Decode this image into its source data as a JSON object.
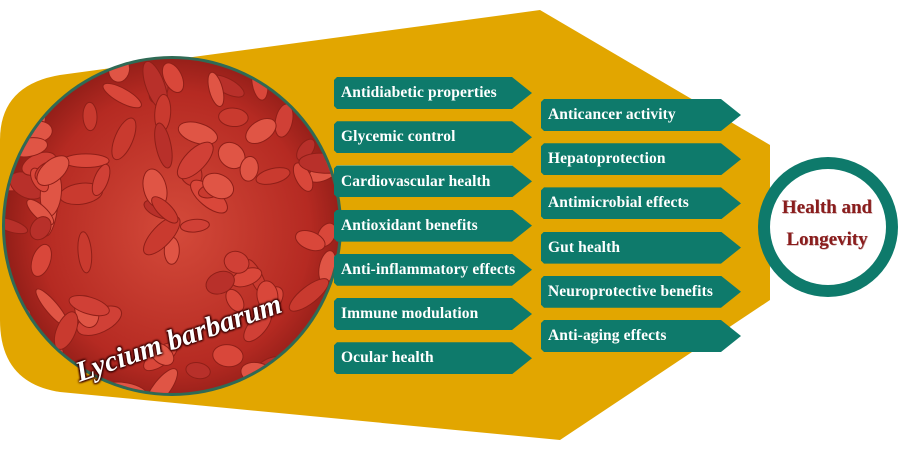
{
  "species": "Lycium barbarum",
  "goal": {
    "line1": "Health and",
    "line2": "Longevity"
  },
  "left_benefits": [
    "Antidiabetic properties",
    "Glycemic control",
    "Cardiovascular health",
    "Antioxidant benefits",
    "Anti-inflammatory effects",
    "Immune modulation",
    "Ocular health"
  ],
  "right_benefits": [
    "Anticancer activity",
    "Hepatoprotection",
    "Antimicrobial effects",
    "Gut health",
    "Neuroprotective benefits",
    "Anti-aging effects"
  ],
  "colors": {
    "background_shape": "#e2a600",
    "tag": "#0e7a6b",
    "goal_ring": "#0e7a6b",
    "goal_text": "#8a1d1d",
    "berry": "#c8352a"
  },
  "icons": [
    "goji-berry-photo"
  ]
}
